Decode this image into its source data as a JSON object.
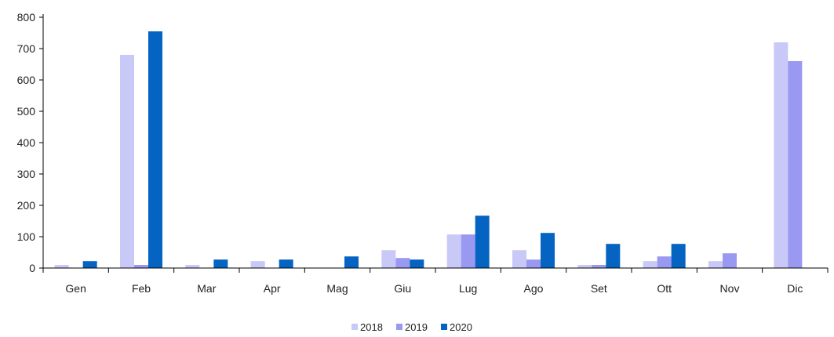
{
  "chart_data": {
    "type": "bar",
    "title": "",
    "xlabel": "",
    "ylabel": "",
    "categories": [
      "Gen",
      "Feb",
      "Mar",
      "Apr",
      "Mag",
      "Giu",
      "Lug",
      "Ago",
      "Set",
      "Ott",
      "Nov",
      "Dic"
    ],
    "ylim": [
      0,
      800
    ],
    "yticks": [
      "0",
      "100",
      "200",
      "300",
      "400",
      "500",
      "600",
      "700",
      "800"
    ],
    "grid": false,
    "legend_position": "bottom",
    "series": [
      {
        "name": "2018",
        "color": "#c9c9f7",
        "values": [
          10,
          680,
          10,
          22,
          0,
          57,
          107,
          57,
          10,
          22,
          22,
          720
        ]
      },
      {
        "name": "2019",
        "color": "#9999f2",
        "values": [
          0,
          10,
          0,
          0,
          0,
          32,
          107,
          27,
          10,
          37,
          47,
          660
        ]
      },
      {
        "name": "2020",
        "color": "#0563c1",
        "values": [
          22,
          755,
          27,
          27,
          37,
          27,
          167,
          112,
          77,
          77,
          0,
          0
        ]
      }
    ]
  }
}
